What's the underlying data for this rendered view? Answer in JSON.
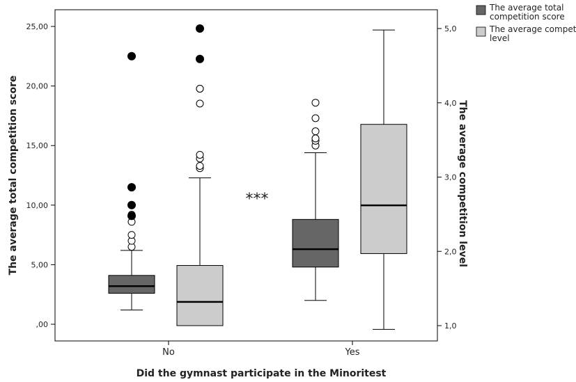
{
  "chart_data": {
    "type": "boxplot",
    "xlabel": "Did the gymnast participate in the Minoritest",
    "ylabel_left": "The average total competition score",
    "ylabel_right": "The average competition level",
    "categories": [
      "No",
      "Yes"
    ],
    "left_axis": {
      "min": 0,
      "max": 25,
      "ticks": [
        0,
        5,
        10,
        15,
        20,
        25
      ],
      "tick_labels": [
        ",00",
        "5,00",
        "10,00",
        "15,00",
        "20,00",
        "25,00"
      ]
    },
    "right_axis": {
      "min": 1,
      "max": 5,
      "ticks": [
        1,
        2,
        3,
        4,
        5
      ],
      "tick_labels": [
        "1,0",
        "2,0",
        "3,0",
        "4,0",
        "5,0"
      ]
    },
    "legend": {
      "placement": "top-right",
      "entries": [
        "The average total competition score",
        "The average competition level"
      ]
    },
    "annotation": "***",
    "grid": false,
    "series": [
      {
        "name": "The average total competition score",
        "axis": "left",
        "color": "#666666",
        "boxes": [
          {
            "category": "No",
            "whisker_low": 1.2,
            "q1": 2.6,
            "median": 3.2,
            "q3": 4.1,
            "whisker_high": 6.2,
            "outliers": [
              6.5,
              7.0,
              7.5,
              8.6,
              9.2
            ],
            "extremes": [
              9.1,
              10.0,
              11.5,
              22.5
            ]
          },
          {
            "category": "Yes",
            "whisker_low": 2.0,
            "q1": 4.8,
            "median": 6.3,
            "q3": 8.8,
            "whisker_high": 14.4,
            "outliers": [
              15.0,
              15.4,
              15.6,
              16.2,
              17.3,
              18.6
            ],
            "extremes": []
          }
        ]
      },
      {
        "name": "The average competition level",
        "axis": "right",
        "color": "#cccccc",
        "boxes": [
          {
            "category": "No",
            "whisker_low": 1.0,
            "q1": 1.0,
            "median": 1.32,
            "q3": 1.81,
            "whisker_high": 2.99,
            "outliers": [
              3.12,
              3.15,
              3.25,
              3.3,
              3.99,
              4.19,
              4.19
            ],
            "extremes": [
              4.59,
              5.0
            ]
          },
          {
            "category": "Yes",
            "whisker_low": 0.95,
            "q1": 1.97,
            "median": 2.62,
            "q3": 3.71,
            "whisker_high": 4.98,
            "outliers": [],
            "extremes": []
          }
        ]
      }
    ]
  }
}
